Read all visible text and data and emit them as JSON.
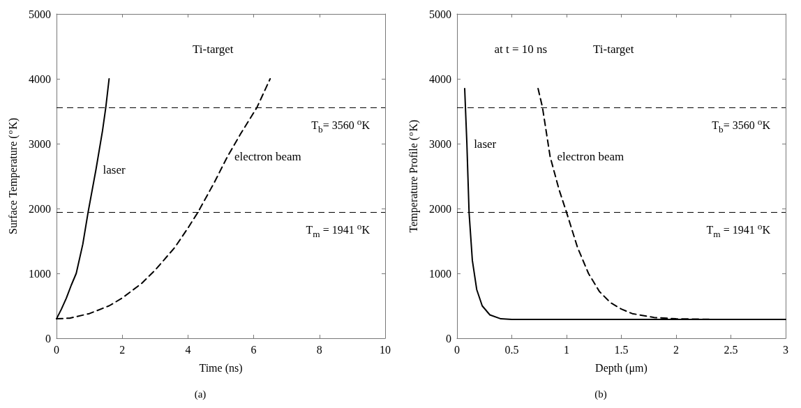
{
  "chart_data": [
    {
      "type": "line",
      "title": "(a)",
      "xlabel": "Time (ns)",
      "ylabel": "Surface Temperature ($^{o}$K)",
      "annotations": [
        "Ti-target"
      ],
      "xlim": [
        0,
        10
      ],
      "xticks": [
        0,
        2,
        4,
        6,
        8,
        10
      ],
      "ylim": [
        0,
        5000
      ],
      "yticks": [
        0,
        1000,
        2000,
        3000,
        4000,
        5000
      ],
      "grid": false,
      "legend": false,
      "series": [
        {
          "name": "laser",
          "color": "#000000",
          "line_style": "solid",
          "x": [
            0,
            0.15,
            0.3,
            0.45,
            0.6,
            0.8,
            0.96,
            1.2,
            1.4,
            1.5,
            1.6
          ],
          "values": [
            300,
            450,
            620,
            820,
            1000,
            1450,
            1940,
            2600,
            3200,
            3560,
            4000
          ]
        },
        {
          "name": "electron beam",
          "color": "#000000",
          "line_style": "dashed",
          "x": [
            0,
            0.4,
            1,
            1.6,
            2,
            2.6,
            3,
            3.6,
            4,
            4.3,
            4.8,
            5.2,
            5.6,
            6.1,
            6.5
          ],
          "values": [
            300,
            310,
            380,
            500,
            620,
            850,
            1050,
            1400,
            1700,
            1940,
            2400,
            2800,
            3150,
            3560,
            4000
          ]
        }
      ],
      "ref_lines": [
        {
          "axis": "y",
          "value": 3560,
          "label": "T$_{b}$= 3560 $^{o}$K",
          "color": "#000000",
          "line_style": "dashed"
        },
        {
          "axis": "y",
          "value": 1941,
          "label": "T$_{m}$ = 1941 $^{o}$K",
          "color": "#000000",
          "line_style": "dashed"
        }
      ]
    },
    {
      "type": "line",
      "title": "(b)",
      "xlabel": "Depth (μm)",
      "ylabel": "Temperature Profile ($^{o}$K)",
      "annotations": [
        "at t = 10 ns",
        "Ti-target"
      ],
      "xlim": [
        0,
        3
      ],
      "xticks": [
        0,
        0.5,
        1,
        1.5,
        2,
        2.5,
        3
      ],
      "ylim": [
        0,
        5000
      ],
      "yticks": [
        0,
        1000,
        2000,
        3000,
        4000,
        5000
      ],
      "grid": false,
      "legend": false,
      "series": [
        {
          "name": "laser",
          "color": "#000000",
          "line_style": "solid",
          "x": [
            0.07,
            0.09,
            0.11,
            0.14,
            0.18,
            0.23,
            0.3,
            0.4,
            0.5,
            1,
            2,
            3
          ],
          "values": [
            3850,
            3000,
            1940,
            1200,
            750,
            500,
            360,
            300,
            290,
            290,
            290,
            290
          ]
        },
        {
          "name": "electron beam",
          "color": "#000000",
          "line_style": "dashed",
          "x": [
            0.74,
            0.78,
            0.85,
            0.93,
            1,
            1.1,
            1.2,
            1.3,
            1.4,
            1.5,
            1.6,
            1.8,
            2,
            2.4
          ],
          "values": [
            3850,
            3560,
            2800,
            2300,
            1940,
            1400,
            1000,
            720,
            550,
            450,
            380,
            320,
            300,
            290
          ]
        }
      ],
      "ref_lines": [
        {
          "axis": "y",
          "value": 3560,
          "label": "T$_{b}$= 3560 $^{o}$K",
          "color": "#000000",
          "line_style": "dashed"
        },
        {
          "axis": "y",
          "value": 1941,
          "label": "T$_{m}$ = 1941 $^{o}$K",
          "color": "#000000",
          "line_style": "dashed"
        }
      ]
    }
  ]
}
